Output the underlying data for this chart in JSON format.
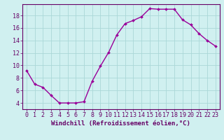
{
  "x": [
    0,
    1,
    2,
    3,
    4,
    5,
    6,
    7,
    8,
    9,
    10,
    11,
    12,
    13,
    14,
    15,
    16,
    17,
    18,
    19,
    20,
    21,
    22,
    23
  ],
  "y": [
    9.2,
    7.0,
    6.5,
    5.2,
    4.0,
    4.0,
    4.0,
    4.2,
    7.5,
    9.9,
    12.1,
    14.9,
    16.7,
    17.2,
    17.8,
    19.1,
    19.0,
    19.0,
    19.0,
    17.3,
    16.5,
    15.1,
    14.0,
    13.1
  ],
  "line_color": "#990099",
  "marker": "D",
  "marker_size": 2.0,
  "bg_color": "#d0f0f0",
  "grid_color": "#aad8d8",
  "xlabel": "Windchill (Refroidissement éolien,°C)",
  "ylim": [
    3.0,
    19.8
  ],
  "xlim": [
    -0.5,
    23.5
  ],
  "yticks": [
    4,
    6,
    8,
    10,
    12,
    14,
    16,
    18
  ],
  "xticks": [
    0,
    1,
    2,
    3,
    4,
    5,
    6,
    7,
    8,
    9,
    10,
    11,
    12,
    13,
    14,
    15,
    16,
    17,
    18,
    19,
    20,
    21,
    22,
    23
  ],
  "xlabel_fontsize": 6.5,
  "tick_fontsize": 6.0,
  "linewidth": 1.0,
  "axes_color": "#660066"
}
